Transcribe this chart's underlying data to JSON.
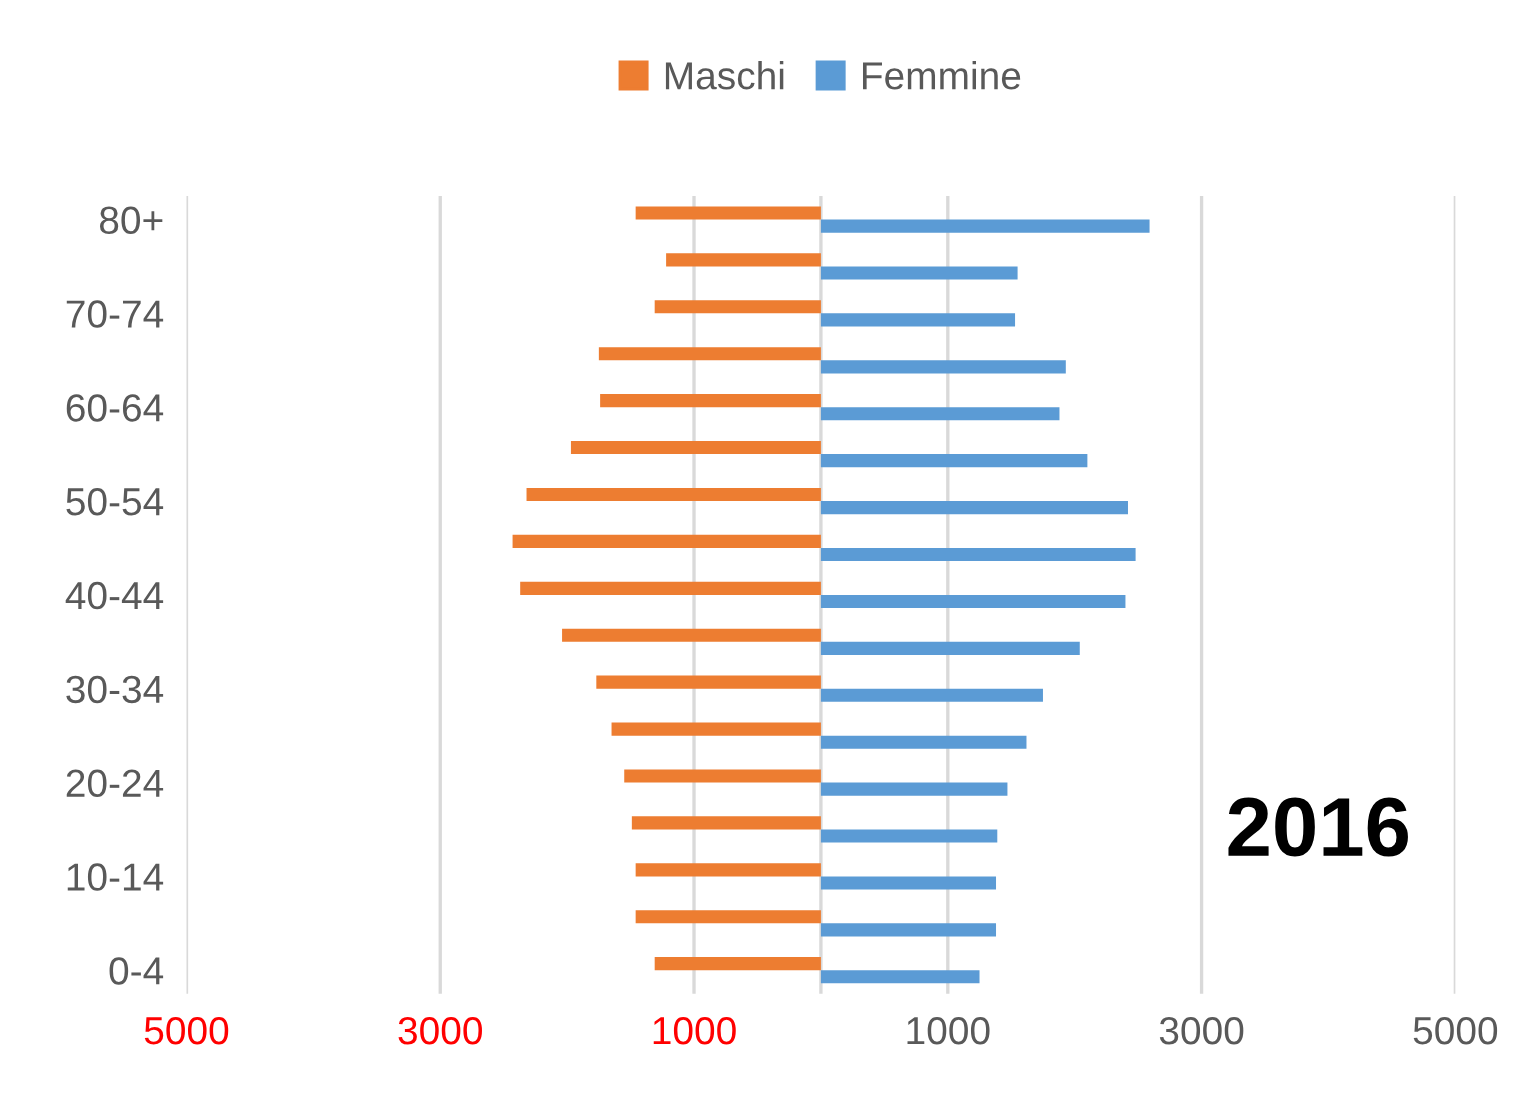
{
  "chart_data": {
    "type": "bar",
    "orientation": "horizontal",
    "categories": [
      "80+",
      null,
      "70-74",
      null,
      "60-64",
      null,
      "50-54",
      null,
      "40-44",
      null,
      "30-34",
      null,
      "20-24",
      null,
      "10-14",
      null,
      "0-4"
    ],
    "series": [
      {
        "name": "Maschi",
        "color": "#ed7d31",
        "values": [
          -1460,
          -1220,
          -1310,
          -1750,
          -1740,
          -1970,
          -2320,
          -2430,
          -2370,
          -2040,
          -1770,
          -1650,
          -1550,
          -1490,
          -1460,
          -1460,
          -1310
        ]
      },
      {
        "name": "Femmine",
        "color": "#5b9bd5",
        "values": [
          2590,
          1550,
          1530,
          1930,
          1880,
          2100,
          2420,
          2480,
          2400,
          2040,
          1750,
          1620,
          1470,
          1390,
          1380,
          1380,
          1250
        ]
      }
    ],
    "xlim": [
      -5000,
      5000
    ],
    "xticks": [
      {
        "value": -5000,
        "label": "5000"
      },
      {
        "value": -3000,
        "label": "3000"
      },
      {
        "value": -1000,
        "label": "1000"
      },
      1000,
      3000,
      5000
    ],
    "grid": "x",
    "legend": "top",
    "annotations": [
      "2016"
    ]
  }
}
